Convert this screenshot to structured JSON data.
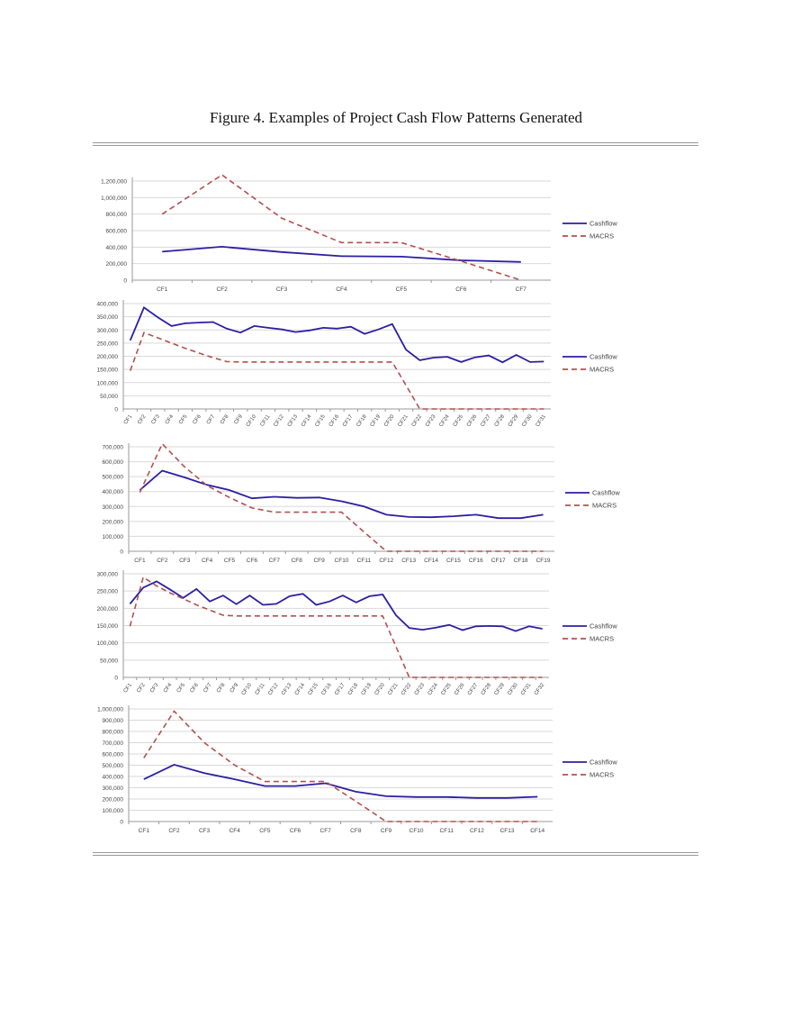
{
  "figure_title": "Figure 4. Examples of Project Cash Flow Patterns Generated",
  "colors": {
    "cashflow": "#2b1fa3",
    "macrs": "#b2504e",
    "grid": "#d9d9d9"
  },
  "chart_data": [
    {
      "type": "line",
      "legend": "right",
      "grid": true,
      "ylim": [
        0,
        1200000
      ],
      "ytick_step": 200000,
      "categories": [
        "CF1",
        "CF2",
        "CF3",
        "CF4",
        "CF5",
        "CF6",
        "CF7"
      ],
      "series": [
        {
          "name": "Cashflow",
          "style": "solid",
          "values": [
            345000,
            405000,
            340000,
            290000,
            285000,
            240000,
            220000
          ]
        },
        {
          "name": "MACRS",
          "style": "dashed",
          "values": [
            800000,
            1275000,
            750000,
            455000,
            455000,
            230000,
            0
          ]
        }
      ]
    },
    {
      "type": "line",
      "legend": "right",
      "grid": true,
      "ylim": [
        0,
        400000
      ],
      "ytick_step": 50000,
      "xlabels_rotated": true,
      "categories": [
        "CF1",
        "CF2",
        "CF3",
        "CF4",
        "CF5",
        "CF6",
        "CF7",
        "CF8",
        "CF9",
        "CF10",
        "CF11",
        "CF12",
        "CF13",
        "CF14",
        "CF15",
        "CF16",
        "CF17",
        "CF18",
        "CF19",
        "CF20",
        "CF21",
        "CF22",
        "CF23",
        "CF24",
        "CF25",
        "CF26",
        "CF27",
        "CF28",
        "CF29",
        "CF30",
        "CF31"
      ],
      "series": [
        {
          "name": "Cashflow",
          "style": "solid",
          "values": [
            260000,
            385000,
            348000,
            315000,
            325000,
            328000,
            330000,
            305000,
            290000,
            315000,
            308000,
            302000,
            292000,
            298000,
            308000,
            305000,
            312000,
            285000,
            302000,
            322000,
            225000,
            185000,
            195000,
            198000,
            178000,
            196000,
            203000,
            177000,
            205000,
            178000,
            180000
          ]
        },
        {
          "name": "MACRS",
          "style": "dashed",
          "values": [
            145000,
            290000,
            270000,
            250000,
            230000,
            212000,
            195000,
            180000,
            178000,
            178000,
            178000,
            178000,
            178000,
            178000,
            178000,
            178000,
            178000,
            178000,
            178000,
            178000,
            90000,
            0,
            0,
            0,
            0,
            0,
            0,
            0,
            0,
            0,
            0
          ]
        }
      ]
    },
    {
      "type": "line",
      "legend": "right",
      "grid": true,
      "ylim": [
        0,
        700000
      ],
      "ytick_step": 100000,
      "categories": [
        "CF1",
        "CF2",
        "CF3",
        "CF4",
        "CF5",
        "CF6",
        "CF7",
        "CF8",
        "CF9",
        "CF10",
        "CF11",
        "CF12",
        "CF13",
        "CF14",
        "CF15",
        "CF16",
        "CF17",
        "CF18",
        "CF19"
      ],
      "series": [
        {
          "name": "Cashflow",
          "style": "solid",
          "values": [
            410000,
            540000,
            495000,
            445000,
            410000,
            355000,
            365000,
            358000,
            360000,
            335000,
            300000,
            245000,
            230000,
            228000,
            235000,
            245000,
            222000,
            222000,
            245000
          ]
        },
        {
          "name": "MACRS",
          "style": "dashed",
          "values": [
            395000,
            720000,
            565000,
            440000,
            360000,
            290000,
            262000,
            262000,
            262000,
            262000,
            130000,
            0,
            0,
            0,
            0,
            0,
            0,
            0,
            0
          ]
        }
      ]
    },
    {
      "type": "line",
      "legend": "right",
      "grid": true,
      "ylim": [
        0,
        300000
      ],
      "ytick_step": 50000,
      "xlabels_rotated": true,
      "categories": [
        "CF1",
        "CF2",
        "CF3",
        "CF4",
        "CF5",
        "CF6",
        "CF7",
        "CF8",
        "CF9",
        "CF10",
        "CF11",
        "CF12",
        "CF13",
        "CF14",
        "CF15",
        "CF16",
        "CF17",
        "CF18",
        "CF19",
        "CF20",
        "CF21",
        "CF22",
        "CF23",
        "CF24",
        "CF25",
        "CF26",
        "CF27",
        "CF28",
        "CF29",
        "CF30",
        "CF31",
        "CF32"
      ],
      "series": [
        {
          "name": "Cashflow",
          "style": "solid",
          "values": [
            213000,
            260000,
            278000,
            255000,
            230000,
            256000,
            220000,
            237000,
            212000,
            237000,
            210000,
            213000,
            235000,
            242000,
            210000,
            220000,
            237000,
            217000,
            235000,
            240000,
            180000,
            143000,
            138000,
            144000,
            152000,
            137000,
            148000,
            149000,
            148000,
            134000,
            148000,
            141000
          ]
        },
        {
          "name": "MACRS",
          "style": "dashed",
          "values": [
            148000,
            290000,
            265000,
            245000,
            228000,
            210000,
            195000,
            180000,
            178000,
            178000,
            178000,
            178000,
            178000,
            178000,
            178000,
            178000,
            178000,
            178000,
            178000,
            178000,
            89000,
            0,
            0,
            0,
            0,
            0,
            0,
            0,
            0,
            0,
            0,
            0
          ]
        }
      ]
    },
    {
      "type": "line",
      "legend": "right",
      "grid": true,
      "ylim": [
        0,
        1000000
      ],
      "ytick_step": 100000,
      "categories": [
        "CF1",
        "CF2",
        "CF3",
        "CF4",
        "CF5",
        "CF6",
        "CF7",
        "CF8",
        "CF9",
        "CF10",
        "CF11",
        "CF12",
        "CF13",
        "CF14"
      ],
      "series": [
        {
          "name": "Cashflow",
          "style": "solid",
          "values": [
            375000,
            505000,
            430000,
            375000,
            315000,
            315000,
            340000,
            265000,
            225000,
            218000,
            218000,
            210000,
            210000,
            220000
          ]
        },
        {
          "name": "MACRS",
          "style": "dashed",
          "values": [
            565000,
            980000,
            700000,
            500000,
            355000,
            355000,
            355000,
            180000,
            0,
            0,
            0,
            0,
            0,
            0
          ]
        }
      ]
    }
  ]
}
